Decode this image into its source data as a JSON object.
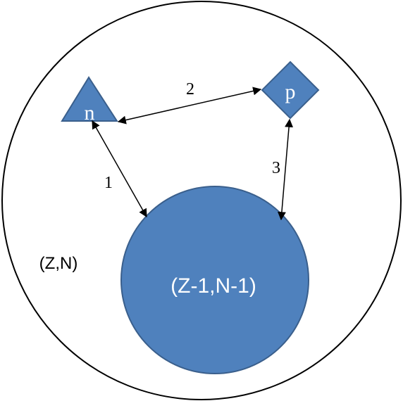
{
  "nucleus": {
    "label": "(Z,N)",
    "outline_color": "#000000"
  },
  "core": {
    "label": "(Z-1,N-1)",
    "fill_color": "#4F81BD",
    "outline_color": "#3A5F8C",
    "text_color": "#FFFFFF"
  },
  "neutron": {
    "label": "n",
    "shape": "triangle",
    "fill_color": "#4F81BD",
    "text_color": "#FFFFFF"
  },
  "proton": {
    "label": "p",
    "shape": "diamond",
    "fill_color": "#4F81BD",
    "text_color": "#FFFFFF"
  },
  "interactions": [
    {
      "label": "1",
      "from": "neutron",
      "to": "core"
    },
    {
      "label": "2",
      "from": "neutron",
      "to": "proton"
    },
    {
      "label": "3",
      "from": "proton",
      "to": "core"
    }
  ]
}
